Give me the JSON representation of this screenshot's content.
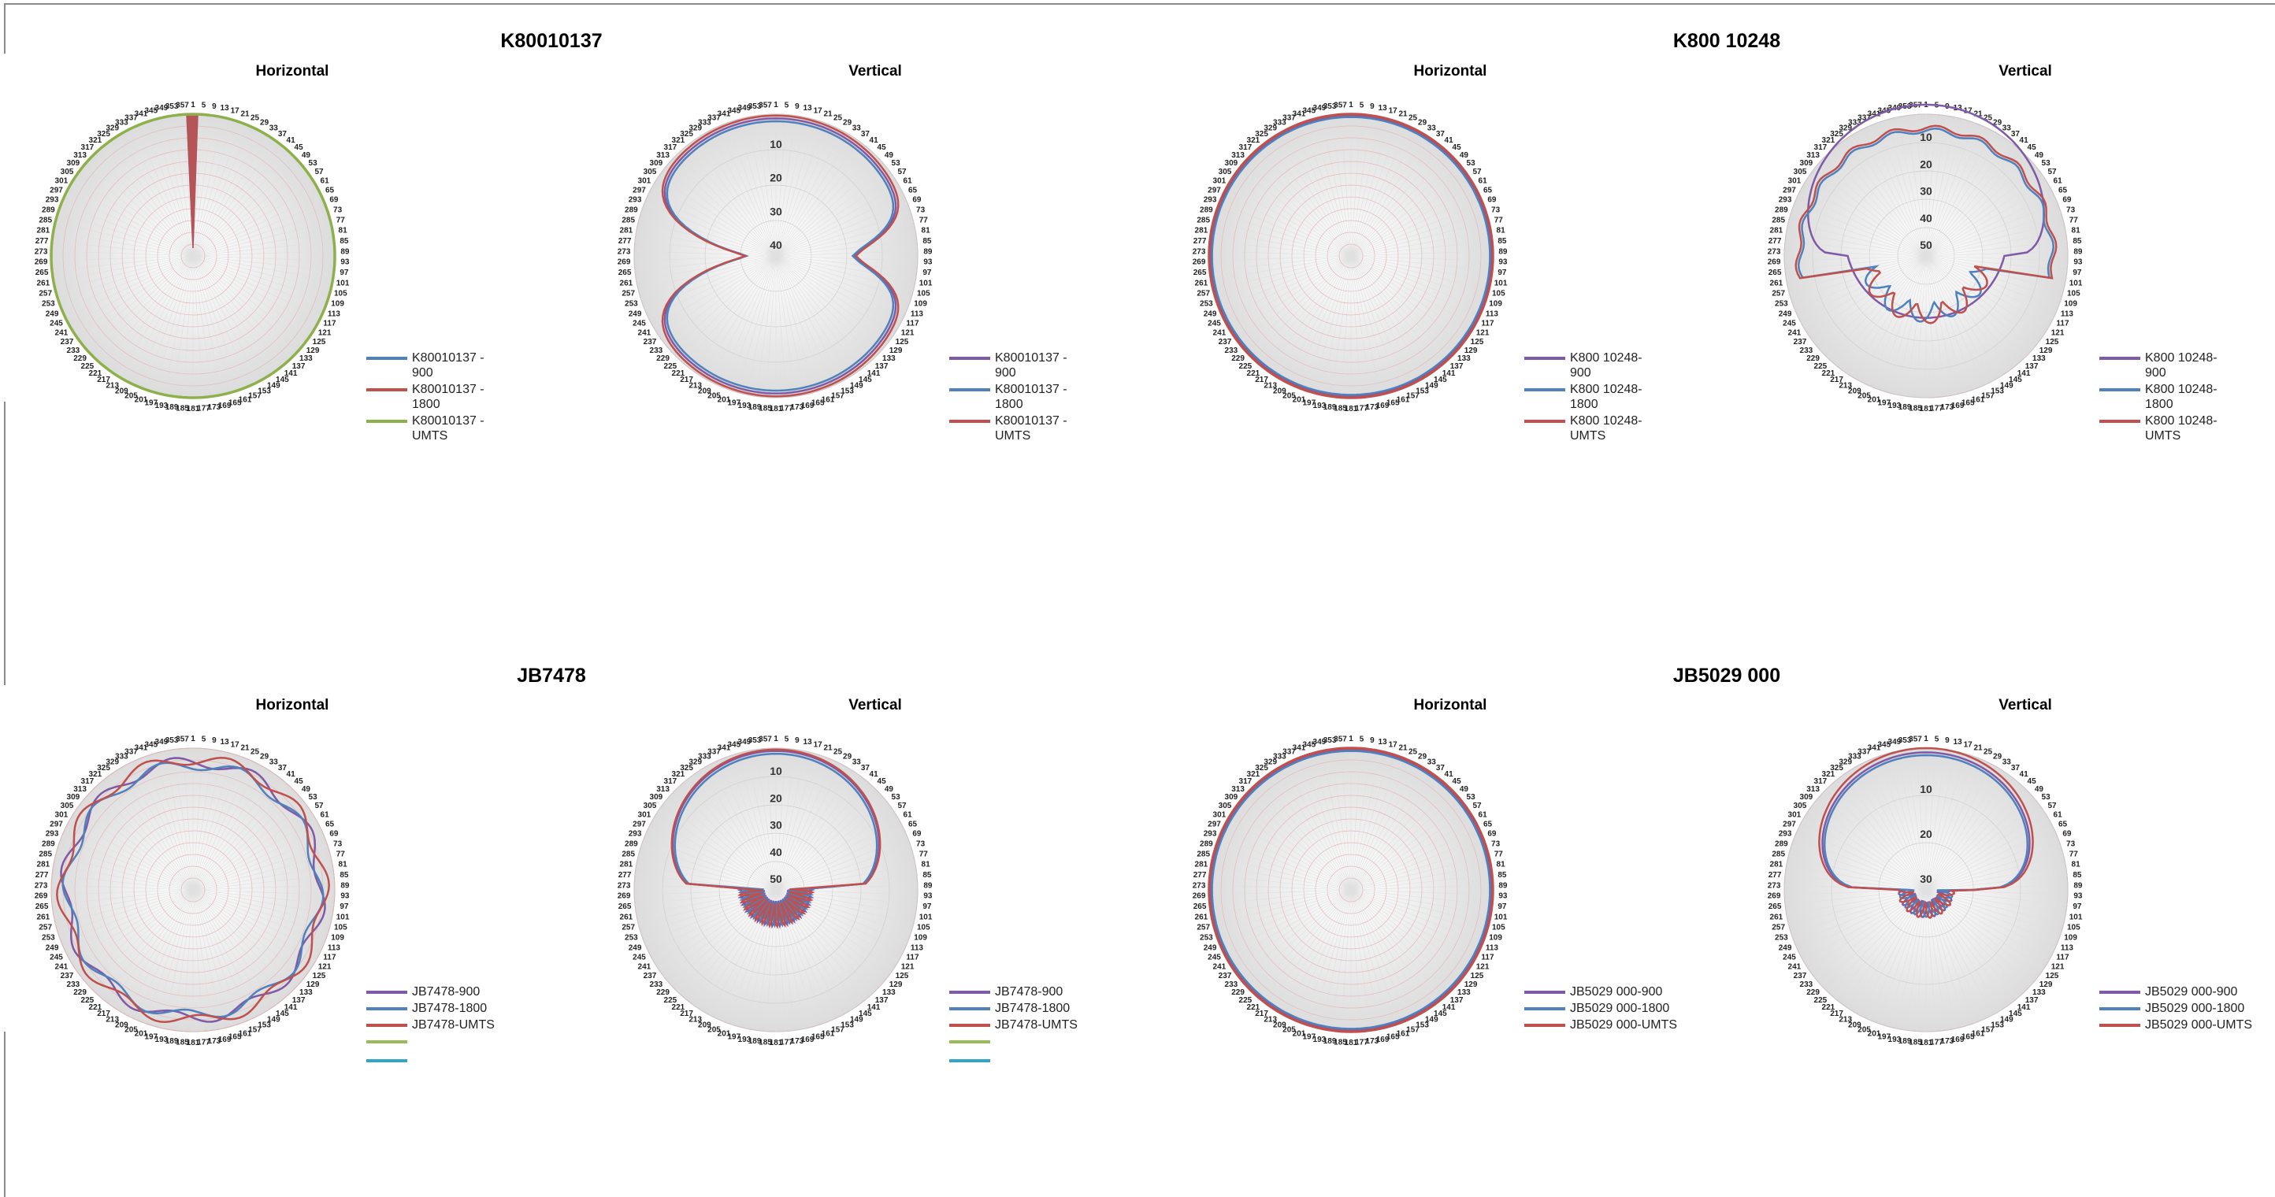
{
  "groups": [
    {
      "title": "K80010137",
      "panels": [
        {
          "subtitle": "Horizontal",
          "chart_data": {
            "type": "polar-line",
            "theta_labels_every": 4,
            "theta_start": 1,
            "theta_end": 360,
            "rlim": [
              0,
              40
            ],
            "r_tick_labels": [],
            "series": [
              {
                "name": "K80010137 -900",
                "color": "#4f81bd",
                "shape": "spike",
                "radius": 1.0
              },
              {
                "name": "K80010137 -1800",
                "color": "#c0504d",
                "shape": "spike",
                "radius": 1.0
              },
              {
                "name": "K80010137 -UMTS",
                "color": "#8eb04b",
                "shape": "circle",
                "radius": 1.0
              }
            ]
          }
        },
        {
          "subtitle": "Vertical",
          "chart_data": {
            "type": "polar-line",
            "theta_labels_every": 4,
            "theta_start": 1,
            "theta_end": 360,
            "rlim": [
              0,
              40
            ],
            "r_tick_labels": [
              "10",
              "20",
              "30",
              "40"
            ],
            "series": [
              {
                "name": "K80010137 -900",
                "color": "#7f5aa6",
                "shape": "butterfly",
                "radius": 0.97
              },
              {
                "name": "K80010137 -1800",
                "color": "#4f81bd",
                "shape": "butterfly",
                "radius": 0.95
              },
              {
                "name": "K80010137 -UMTS",
                "color": "#c0504d",
                "shape": "butterfly",
                "radius": 0.99
              }
            ]
          }
        }
      ]
    },
    {
      "title": "K800 10248",
      "panels": [
        {
          "subtitle": "Horizontal",
          "chart_data": {
            "type": "polar-line",
            "theta_labels_every": 4,
            "theta_start": 1,
            "theta_end": 360,
            "rlim": [
              0,
              40
            ],
            "r_tick_labels": [],
            "series": [
              {
                "name": "K800 10248-900",
                "color": "#7f5aa6",
                "shape": "circle",
                "radius": 0.99
              },
              {
                "name": "K800 10248-1800",
                "color": "#4f81bd",
                "shape": "circle",
                "radius": 0.98
              },
              {
                "name": "K800 10248-UMTS",
                "color": "#c0504d",
                "shape": "circle",
                "radius": 1.0
              }
            ]
          }
        },
        {
          "subtitle": "Vertical",
          "chart_data": {
            "type": "polar-line",
            "theta_labels_every": 4,
            "theta_start": 1,
            "theta_end": 360,
            "rlim": [
              0,
              50
            ],
            "r_tick_labels": [
              "10",
              "20",
              "30",
              "40",
              "50"
            ],
            "series": [
              {
                "name": "K800 10248-900",
                "color": "#7f5aa6",
                "shape": "cup",
                "radius": 0.97
              },
              {
                "name": "K800 10248-1800",
                "color": "#4f81bd",
                "shape": "cup-inner",
                "radius": 0.93
              },
              {
                "name": "K800 10248-UMTS",
                "color": "#c0504d",
                "shape": "cup-inner",
                "radius": 0.95
              }
            ]
          }
        }
      ]
    },
    {
      "title": "JB7478",
      "panels": [
        {
          "subtitle": "Horizontal",
          "chart_data": {
            "type": "polar-line",
            "theta_labels_every": 4,
            "theta_start": 1,
            "theta_end": 360,
            "rlim": [
              0,
              40
            ],
            "r_tick_labels": [],
            "series": [
              {
                "name": "JB7478-900",
                "color": "#7f5aa6",
                "shape": "wavy",
                "radius": 0.94
              },
              {
                "name": "JB7478-1800",
                "color": "#4f81bd",
                "shape": "wavy",
                "radius": 0.92
              },
              {
                "name": "JB7478-UMTS",
                "color": "#c0504d",
                "shape": "wavy",
                "radius": 0.96
              },
              {
                "name": "",
                "color": "#9bbb59",
                "shape": "none",
                "radius": 0
              },
              {
                "name": "",
                "color": "#31a6c9",
                "shape": "none",
                "radius": 0
              }
            ]
          }
        },
        {
          "subtitle": "Vertical",
          "chart_data": {
            "type": "polar-line",
            "theta_labels_every": 4,
            "theta_start": 1,
            "theta_end": 360,
            "rlim": [
              0,
              50
            ],
            "r_tick_labels": [
              "10",
              "20",
              "30",
              "40",
              "50"
            ],
            "series": [
              {
                "name": "JB7478-900",
                "color": "#7f5aa6",
                "shape": "lobe",
                "radius": 0.98
              },
              {
                "name": "JB7478-1800",
                "color": "#4f81bd",
                "shape": "lobe",
                "radius": 0.96
              },
              {
                "name": "JB7478-UMTS",
                "color": "#c0504d",
                "shape": "lobe",
                "radius": 0.99
              },
              {
                "name": "",
                "color": "#9bbb59",
                "shape": "none",
                "radius": 0
              },
              {
                "name": "",
                "color": "#31a6c9",
                "shape": "none",
                "radius": 0
              }
            ]
          }
        }
      ]
    },
    {
      "title": "JB5029 000",
      "panels": [
        {
          "subtitle": "Horizontal",
          "chart_data": {
            "type": "polar-line",
            "theta_labels_every": 4,
            "theta_start": 1,
            "theta_end": 360,
            "rlim": [
              0,
              40
            ],
            "r_tick_labels": [],
            "series": [
              {
                "name": "JB5029 000-900",
                "color": "#7f5aa6",
                "shape": "circle",
                "radius": 0.99
              },
              {
                "name": "JB5029 000-1800",
                "color": "#4f81bd",
                "shape": "circle",
                "radius": 0.98
              },
              {
                "name": "JB5029 000-UMTS",
                "color": "#c0504d",
                "shape": "circle",
                "radius": 1.0
              }
            ]
          }
        },
        {
          "subtitle": "Vertical",
          "chart_data": {
            "type": "polar-line",
            "theta_labels_every": 4,
            "theta_start": 1,
            "theta_end": 360,
            "rlim": [
              0,
              30
            ],
            "r_tick_labels": [
              "10",
              "20",
              "30"
            ],
            "series": [
              {
                "name": "JB5029 000-900",
                "color": "#7f5aa6",
                "shape": "bowl",
                "radius": 0.97
              },
              {
                "name": "JB5029 000-1800",
                "color": "#4f81bd",
                "shape": "bowl",
                "radius": 0.95
              },
              {
                "name": "JB5029 000-UMTS",
                "color": "#c0504d",
                "shape": "bowl",
                "radius": 1.0
              }
            ]
          }
        }
      ]
    }
  ]
}
